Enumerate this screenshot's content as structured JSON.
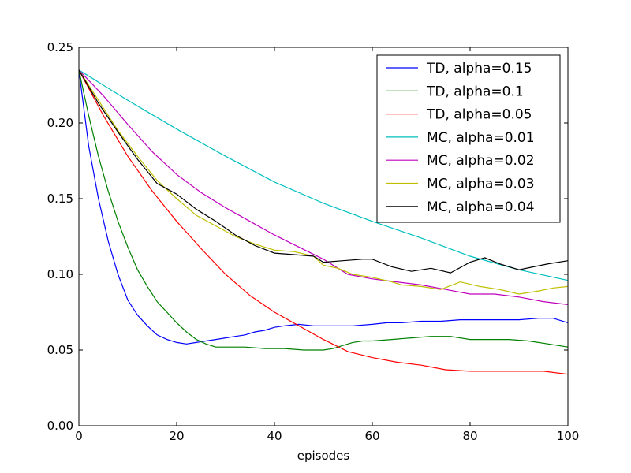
{
  "chart_data": {
    "type": "line",
    "title": "",
    "xlabel": "episodes",
    "ylabel": "",
    "xlim": [
      0,
      100
    ],
    "ylim": [
      0.0,
      0.25
    ],
    "x_ticks": [
      0,
      20,
      40,
      60,
      80,
      100
    ],
    "x_tick_labels": [
      "0",
      "20",
      "40",
      "60",
      "80",
      "100"
    ],
    "y_ticks": [
      0.0,
      0.05,
      0.1,
      0.15,
      0.2,
      0.25
    ],
    "y_tick_labels": [
      "0.00",
      "0.05",
      "0.10",
      "0.15",
      "0.20",
      "0.25"
    ],
    "grid": false,
    "legend_position": "top-right",
    "series": [
      {
        "name": "TD, alpha=0.15",
        "color": "#0000ff",
        "points": [
          [
            0,
            0.235
          ],
          [
            2,
            0.185
          ],
          [
            4,
            0.15
          ],
          [
            6,
            0.122
          ],
          [
            8,
            0.1
          ],
          [
            10,
            0.083
          ],
          [
            12,
            0.073
          ],
          [
            14,
            0.066
          ],
          [
            16,
            0.06
          ],
          [
            18,
            0.057
          ],
          [
            20,
            0.055
          ],
          [
            22,
            0.054
          ],
          [
            24,
            0.055
          ],
          [
            26,
            0.056
          ],
          [
            28,
            0.057
          ],
          [
            30,
            0.058
          ],
          [
            32,
            0.059
          ],
          [
            34,
            0.06
          ],
          [
            36,
            0.062
          ],
          [
            38,
            0.063
          ],
          [
            40,
            0.065
          ],
          [
            42,
            0.066
          ],
          [
            45,
            0.067
          ],
          [
            48,
            0.066
          ],
          [
            50,
            0.066
          ],
          [
            53,
            0.066
          ],
          [
            56,
            0.066
          ],
          [
            60,
            0.067
          ],
          [
            63,
            0.068
          ],
          [
            66,
            0.068
          ],
          [
            70,
            0.069
          ],
          [
            74,
            0.069
          ],
          [
            78,
            0.07
          ],
          [
            82,
            0.07
          ],
          [
            86,
            0.07
          ],
          [
            90,
            0.07
          ],
          [
            94,
            0.071
          ],
          [
            97,
            0.071
          ],
          [
            100,
            0.068
          ]
        ]
      },
      {
        "name": "TD, alpha=0.1",
        "color": "#008000",
        "points": [
          [
            0,
            0.235
          ],
          [
            2,
            0.205
          ],
          [
            4,
            0.178
          ],
          [
            6,
            0.155
          ],
          [
            8,
            0.135
          ],
          [
            10,
            0.118
          ],
          [
            12,
            0.103
          ],
          [
            14,
            0.092
          ],
          [
            16,
            0.082
          ],
          [
            18,
            0.075
          ],
          [
            20,
            0.068
          ],
          [
            22,
            0.062
          ],
          [
            24,
            0.057
          ],
          [
            26,
            0.054
          ],
          [
            28,
            0.052
          ],
          [
            30,
            0.052
          ],
          [
            34,
            0.052
          ],
          [
            38,
            0.051
          ],
          [
            42,
            0.051
          ],
          [
            46,
            0.05
          ],
          [
            50,
            0.05
          ],
          [
            52,
            0.051
          ],
          [
            54,
            0.053
          ],
          [
            56,
            0.055
          ],
          [
            58,
            0.056
          ],
          [
            60,
            0.056
          ],
          [
            64,
            0.057
          ],
          [
            68,
            0.058
          ],
          [
            72,
            0.059
          ],
          [
            76,
            0.059
          ],
          [
            80,
            0.057
          ],
          [
            84,
            0.057
          ],
          [
            88,
            0.057
          ],
          [
            92,
            0.056
          ],
          [
            96,
            0.054
          ],
          [
            100,
            0.052
          ]
        ]
      },
      {
        "name": "TD, alpha=0.05",
        "color": "#ff0000",
        "points": [
          [
            0,
            0.235
          ],
          [
            5,
            0.205
          ],
          [
            10,
            0.178
          ],
          [
            15,
            0.155
          ],
          [
            20,
            0.135
          ],
          [
            25,
            0.117
          ],
          [
            30,
            0.1
          ],
          [
            35,
            0.086
          ],
          [
            40,
            0.075
          ],
          [
            45,
            0.066
          ],
          [
            50,
            0.057
          ],
          [
            55,
            0.049
          ],
          [
            60,
            0.045
          ],
          [
            65,
            0.042
          ],
          [
            70,
            0.04
          ],
          [
            75,
            0.037
          ],
          [
            80,
            0.036
          ],
          [
            85,
            0.036
          ],
          [
            90,
            0.036
          ],
          [
            95,
            0.036
          ],
          [
            100,
            0.034
          ]
        ]
      },
      {
        "name": "MC, alpha=0.01",
        "color": "#00bfbf",
        "points": [
          [
            0,
            0.235
          ],
          [
            10,
            0.215
          ],
          [
            20,
            0.196
          ],
          [
            30,
            0.178
          ],
          [
            40,
            0.161
          ],
          [
            50,
            0.147
          ],
          [
            60,
            0.135
          ],
          [
            70,
            0.124
          ],
          [
            80,
            0.112
          ],
          [
            90,
            0.103
          ],
          [
            100,
            0.096
          ]
        ]
      },
      {
        "name": "MC, alpha=0.02",
        "color": "#bf00bf",
        "points": [
          [
            0,
            0.235
          ],
          [
            5,
            0.218
          ],
          [
            10,
            0.199
          ],
          [
            15,
            0.181
          ],
          [
            20,
            0.166
          ],
          [
            25,
            0.154
          ],
          [
            30,
            0.144
          ],
          [
            35,
            0.135
          ],
          [
            40,
            0.126
          ],
          [
            45,
            0.118
          ],
          [
            50,
            0.11
          ],
          [
            55,
            0.1
          ],
          [
            60,
            0.097
          ],
          [
            65,
            0.095
          ],
          [
            70,
            0.093
          ],
          [
            75,
            0.09
          ],
          [
            80,
            0.087
          ],
          [
            85,
            0.087
          ],
          [
            90,
            0.085
          ],
          [
            95,
            0.082
          ],
          [
            100,
            0.08
          ]
        ]
      },
      {
        "name": "MC, alpha=0.03",
        "color": "#bfbf00",
        "points": [
          [
            0,
            0.235
          ],
          [
            4,
            0.215
          ],
          [
            8,
            0.195
          ],
          [
            12,
            0.178
          ],
          [
            16,
            0.162
          ],
          [
            20,
            0.15
          ],
          [
            24,
            0.139
          ],
          [
            28,
            0.132
          ],
          [
            32,
            0.125
          ],
          [
            36,
            0.12
          ],
          [
            40,
            0.116
          ],
          [
            44,
            0.115
          ],
          [
            48,
            0.112
          ],
          [
            50,
            0.106
          ],
          [
            53,
            0.104
          ],
          [
            56,
            0.1
          ],
          [
            60,
            0.098
          ],
          [
            64,
            0.095
          ],
          [
            66,
            0.093
          ],
          [
            70,
            0.092
          ],
          [
            74,
            0.09
          ],
          [
            78,
            0.095
          ],
          [
            82,
            0.092
          ],
          [
            86,
            0.09
          ],
          [
            90,
            0.087
          ],
          [
            94,
            0.089
          ],
          [
            97,
            0.091
          ],
          [
            100,
            0.092
          ]
        ]
      },
      {
        "name": "MC, alpha=0.04",
        "color": "#000000",
        "points": [
          [
            0,
            0.235
          ],
          [
            4,
            0.213
          ],
          [
            8,
            0.194
          ],
          [
            12,
            0.176
          ],
          [
            16,
            0.16
          ],
          [
            20,
            0.153
          ],
          [
            24,
            0.143
          ],
          [
            28,
            0.135
          ],
          [
            32,
            0.126
          ],
          [
            36,
            0.119
          ],
          [
            40,
            0.114
          ],
          [
            44,
            0.113
          ],
          [
            48,
            0.112
          ],
          [
            50,
            0.108
          ],
          [
            54,
            0.109
          ],
          [
            58,
            0.11
          ],
          [
            60,
            0.11
          ],
          [
            64,
            0.105
          ],
          [
            68,
            0.102
          ],
          [
            72,
            0.104
          ],
          [
            76,
            0.101
          ],
          [
            80,
            0.108
          ],
          [
            83,
            0.111
          ],
          [
            86,
            0.107
          ],
          [
            90,
            0.103
          ],
          [
            93,
            0.105
          ],
          [
            96,
            0.107
          ],
          [
            100,
            0.109
          ]
        ]
      }
    ]
  }
}
